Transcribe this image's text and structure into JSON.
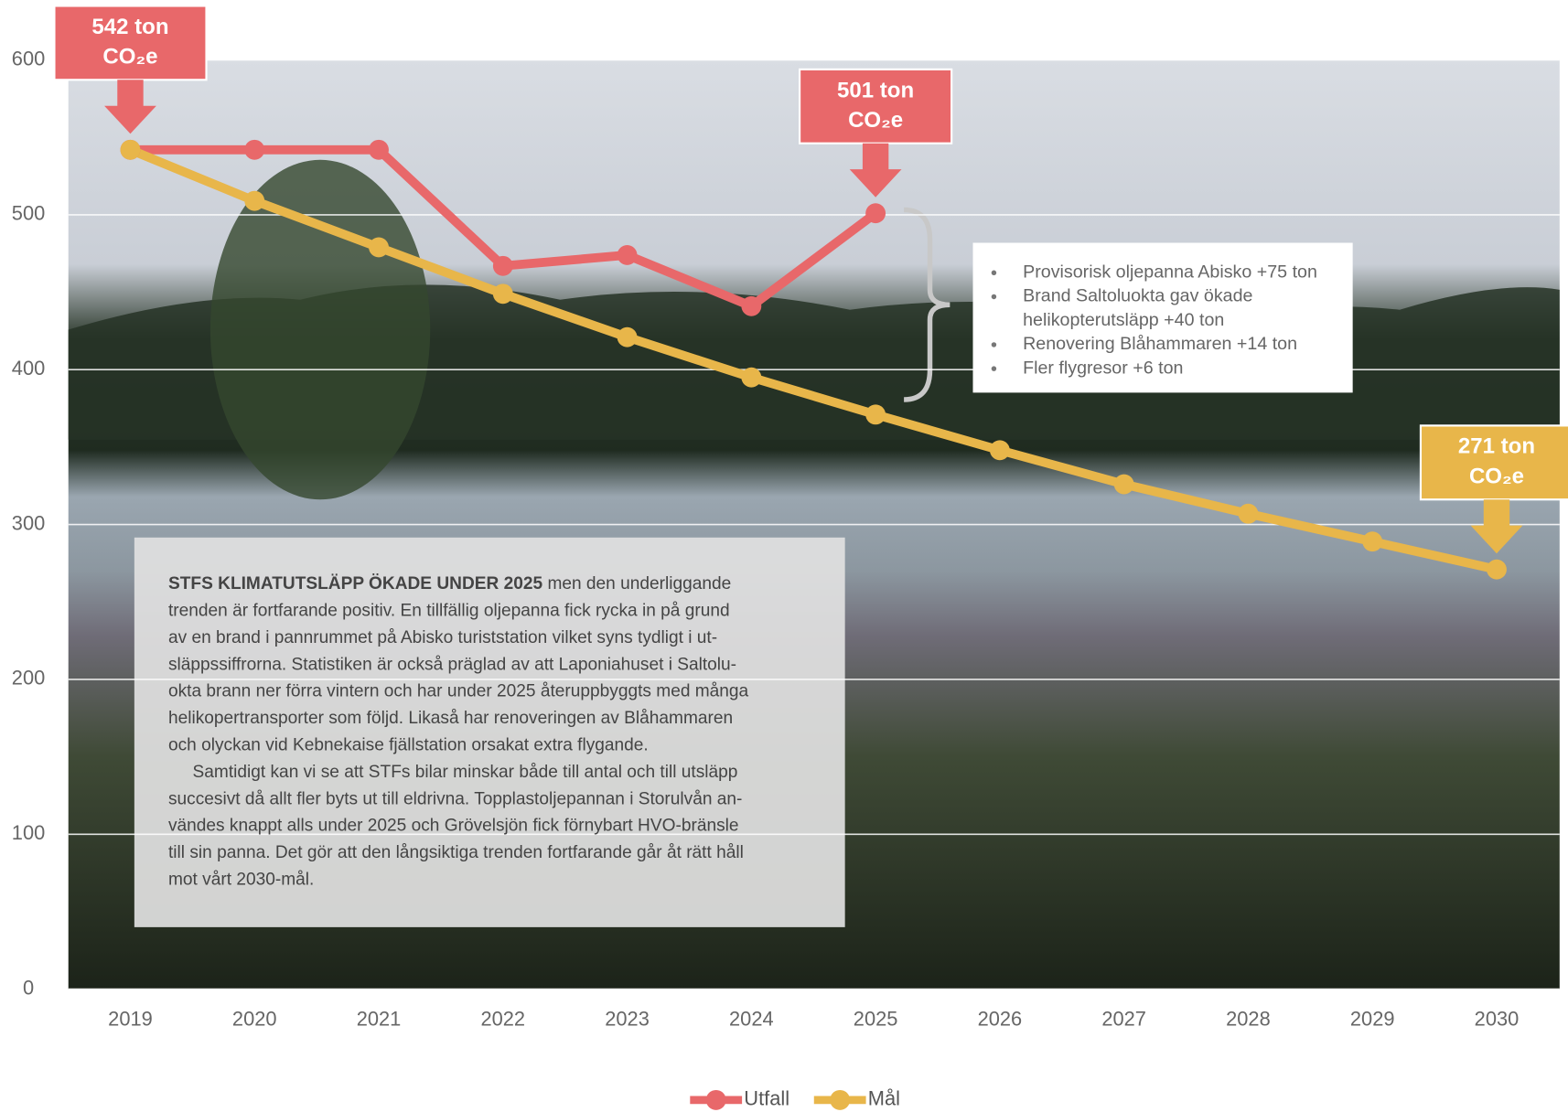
{
  "chart_data": {
    "type": "line",
    "categories": [
      "2019",
      "2020",
      "2021",
      "2022",
      "2023",
      "2024",
      "2025",
      "2026",
      "2027",
      "2028",
      "2029",
      "2030"
    ],
    "series": [
      {
        "name": "Utfall",
        "color": "#e8686a",
        "values": [
          542,
          542,
          542,
          467,
          474,
          441,
          501,
          null,
          null,
          null,
          null,
          null
        ],
        "value_labels": [
          "542 ton",
          null,
          null,
          null,
          null,
          null,
          "501 ton",
          null,
          null,
          null,
          null,
          null
        ]
      },
      {
        "name": "Mål",
        "color": "#e8b64a",
        "values": [
          542,
          509,
          479,
          449,
          421,
          395,
          371,
          348,
          326,
          307,
          289,
          271
        ],
        "value_labels": [
          null,
          null,
          null,
          null,
          null,
          null,
          null,
          null,
          null,
          null,
          null,
          "271 ton"
        ]
      }
    ],
    "value_label_unit": "CO₂e",
    "ylim": [
      0,
      600
    ],
    "yticks": [
      0,
      100,
      200,
      300,
      400,
      500,
      600
    ],
    "grid": true,
    "legend": "bottom",
    "bullets": [
      "Provisorisk oljepanna Abisko +75 ton",
      "Brand Saltoluokta gav ökade",
      "helikopterutsläpp +40 ton",
      "Renovering Blåhammaren +14 ton",
      "Fler flygresor +6 ton"
    ],
    "text_box": {
      "lead": "STFS KLIMATUTSLÄPP ÖKADE UNDER 2025",
      "lines": [
        " men den underliggande",
        "trenden är fortfarande positiv. En tillfällig oljepanna fick rycka in på grund",
        "av en brand i pannrummet på Abisko turiststation vilket syns tydligt i ut-",
        "släppssiffrorna. Statistiken är också präglad av att Laponiahuset i Saltolu-",
        "okta brann ner förra vintern och har under 2025 återuppbyggts med många",
        "helikopertransporter som följd. Likaså har renoveringen av Blåhammaren",
        "och olyckan vid Kebnekaise fjällstation orsakat extra flygande.",
        "     Samtidigt kan vi se att STFs bilar minskar både till antal och till utsläpp",
        "succesivt då allt fler byts ut till eldrivna. Topplastoljepannan i Storulvån an-",
        "vändes knappt alls under 2025 och Grövelsjön fick förnybart HVO-bränsle",
        "till sin panna. Det gör att den långsiktiga trenden fortfarande går åt rätt håll",
        "mot vårt 2030-mål."
      ]
    }
  }
}
